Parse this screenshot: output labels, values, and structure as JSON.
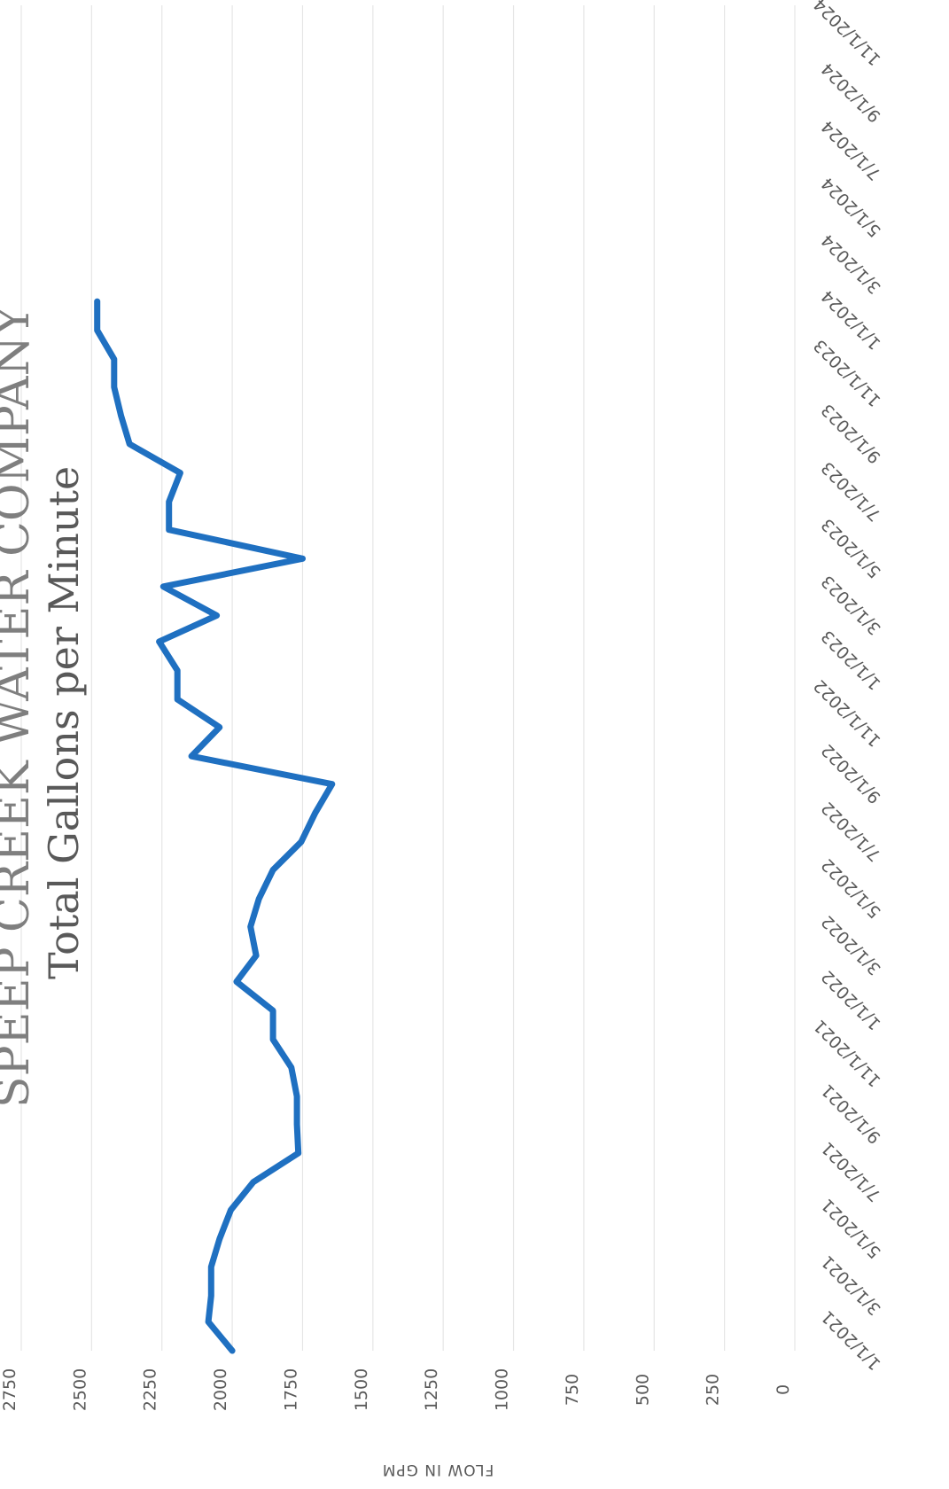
{
  "chart_data": {
    "type": "line",
    "title": "SPEEP CREEK WATER COMPANY",
    "subtitle": "Total Gallons per Minute",
    "xlabel": "",
    "ylabel": "FLOW IN GPM",
    "ylim": [
      0,
      2750
    ],
    "yticks": [
      0,
      250,
      500,
      750,
      1000,
      1250,
      1500,
      1750,
      2000,
      2250,
      2500,
      2750
    ],
    "xlim": [
      "1/1/2021",
      "11/1/2024"
    ],
    "xticks": [
      "1/1/2021",
      "3/1/2021",
      "5/1/2021",
      "7/1/2021",
      "9/1/2021",
      "11/1/2021",
      "1/1/2022",
      "3/1/2022",
      "5/1/2022",
      "7/1/2022",
      "9/1/2022",
      "11/1/2022",
      "1/1/2023",
      "3/1/2023",
      "5/1/2023",
      "7/1/2023",
      "9/1/2023",
      "11/1/2023",
      "1/1/2024",
      "3/1/2024",
      "5/1/2024",
      "7/1/2024",
      "9/1/2024",
      "11/1/2024"
    ],
    "grid": true,
    "orientation": "rotated 90 degrees",
    "series": [
      {
        "color": "#1f70c1",
        "x": [
          "1/1/2021",
          "2/1/2021",
          "3/1/2021",
          "4/1/2021",
          "5/1/2021",
          "6/1/2021",
          "7/1/2021",
          "8/1/2021",
          "9/1/2021",
          "10/1/2021",
          "11/1/2021",
          "12/1/2021",
          "1/1/2022",
          "2/1/2022",
          "3/1/2022",
          "4/1/2022",
          "5/1/2022",
          "6/1/2022",
          "7/1/2022",
          "8/1/2022",
          "9/1/2022",
          "10/1/2022",
          "11/1/2022",
          "12/1/2022",
          "1/1/2023",
          "2/1/2023",
          "3/1/2023",
          "4/1/2023",
          "5/1/2023",
          "6/1/2023",
          "7/1/2023",
          "8/1/2023",
          "9/1/2023",
          "10/1/2023",
          "11/1/2023",
          "12/1/2023",
          "1/1/2024",
          "2/1/2024"
        ],
        "values": [
          2000,
          2085,
          2075,
          2075,
          2045,
          2005,
          1925,
          1765,
          1770,
          1770,
          1790,
          1855,
          1855,
          1985,
          1915,
          1935,
          1905,
          1855,
          1755,
          1705,
          1645,
          2145,
          2045,
          2195,
          2195,
          2260,
          2055,
          2245,
          1750,
          2225,
          2225,
          2185,
          2365,
          2395,
          2420,
          2420,
          2480,
          2480
        ]
      }
    ]
  }
}
